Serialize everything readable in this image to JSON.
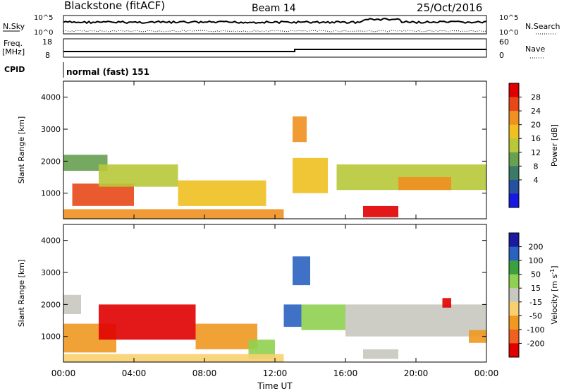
{
  "header": {
    "station": "Blackstone (fitACF)",
    "beam": "Beam 14",
    "date": "25/Oct/2016"
  },
  "panels": {
    "nsky_label": "N.Sky",
    "nsearch_label": "N.Search",
    "nsky_ticks": [
      "10^5",
      "10^0"
    ],
    "nsearch_ticks": [
      "10^5",
      "10^0"
    ],
    "freq_label": "Freq.",
    "freq_unit": "[MHz]",
    "freq_ticks": [
      "18",
      "8"
    ],
    "nave_label": "Nave",
    "nave_ticks": [
      "60",
      "0"
    ],
    "cpid_label": "CPID",
    "cpid_value": "normal (fast) 151"
  },
  "chart_data": [
    {
      "type": "heatmap",
      "name": "power-panel",
      "ylabel": "Slant Range [km]",
      "yticks": [
        "1000",
        "2000",
        "3000",
        "4000"
      ],
      "ylim": [
        200,
        4500
      ],
      "colorbar_label": "Power [dB]",
      "colorbar_ticks": [
        "4",
        "8",
        "12",
        "16",
        "20",
        "24",
        "28"
      ],
      "colors": [
        "#1818e0",
        "#2850a0",
        "#3a7a66",
        "#66a050",
        "#b8c838",
        "#f0c020",
        "#f09020",
        "#e84818",
        "#e00000"
      ],
      "xticks": [
        "00:00",
        "04:00",
        "08:00",
        "12:00",
        "16:00",
        "20:00",
        "00:00"
      ],
      "regions": [
        {
          "t0": 0.0,
          "t1": 2.5,
          "r0": 1700,
          "r1": 2200,
          "level": 3
        },
        {
          "t0": 0.5,
          "t1": 4.0,
          "r0": 600,
          "r1": 1300,
          "level": 7
        },
        {
          "t0": 2.0,
          "t1": 6.5,
          "r0": 1200,
          "r1": 1900,
          "level": 4
        },
        {
          "t0": 6.5,
          "t1": 11.5,
          "r0": 600,
          "r1": 1400,
          "level": 5
        },
        {
          "t0": 0.0,
          "t1": 12.5,
          "r0": 200,
          "r1": 500,
          "level": 6
        },
        {
          "t0": 13.0,
          "t1": 15.0,
          "r0": 1000,
          "r1": 2100,
          "level": 5
        },
        {
          "t0": 13.0,
          "t1": 13.8,
          "r0": 2600,
          "r1": 3400,
          "level": 6
        },
        {
          "t0": 15.5,
          "t1": 24.0,
          "r0": 1100,
          "r1": 1900,
          "level": 4
        },
        {
          "t0": 17.0,
          "t1": 19.0,
          "r0": 250,
          "r1": 600,
          "level": 8
        },
        {
          "t0": 19.0,
          "t1": 22.0,
          "r0": 1100,
          "r1": 1500,
          "level": 6
        }
      ]
    },
    {
      "type": "heatmap",
      "name": "velocity-panel",
      "ylabel": "Slant Range [km]",
      "yticks": [
        "1000",
        "2000",
        "3000",
        "4000"
      ],
      "ylim": [
        200,
        4500
      ],
      "colorbar_label": "Velocity [m s^-1]",
      "colorbar_ticks": [
        "200",
        "100",
        "50",
        "15",
        "-15",
        "-50",
        "-100",
        "-200"
      ],
      "colors": [
        "#1a1aa0",
        "#2a62c0",
        "#3aa040",
        "#90d050",
        "#c8c8c0",
        "#f8d070",
        "#f09820",
        "#f06020",
        "#e00000"
      ],
      "xticks": [
        "00:00",
        "04:00",
        "08:00",
        "12:00",
        "16:00",
        "20:00",
        "00:00"
      ],
      "xlabel": "Time UT",
      "regions": [
        {
          "t0": 0.0,
          "t1": 1.0,
          "r0": 1700,
          "r1": 2300,
          "level": 4
        },
        {
          "t0": 0.0,
          "t1": 3.0,
          "r0": 500,
          "r1": 1400,
          "level": 6
        },
        {
          "t0": 2.0,
          "t1": 7.5,
          "r0": 900,
          "r1": 2000,
          "level": 8
        },
        {
          "t0": 7.5,
          "t1": 11.0,
          "r0": 600,
          "r1": 1400,
          "level": 6
        },
        {
          "t0": 10.5,
          "t1": 12.0,
          "r0": 300,
          "r1": 900,
          "level": 3
        },
        {
          "t0": 0.0,
          "t1": 12.5,
          "r0": 200,
          "r1": 450,
          "level": 5
        },
        {
          "t0": 12.5,
          "t1": 13.5,
          "r0": 1300,
          "r1": 2000,
          "level": 1
        },
        {
          "t0": 13.0,
          "t1": 14.0,
          "r0": 2600,
          "r1": 3500,
          "level": 1
        },
        {
          "t0": 13.5,
          "t1": 16.0,
          "r0": 1200,
          "r1": 2000,
          "level": 3
        },
        {
          "t0": 16.0,
          "t1": 24.0,
          "r0": 1000,
          "r1": 2000,
          "level": 4
        },
        {
          "t0": 17.0,
          "t1": 19.0,
          "r0": 300,
          "r1": 600,
          "level": 4
        },
        {
          "t0": 21.5,
          "t1": 22.0,
          "r0": 1900,
          "r1": 2200,
          "level": 8
        },
        {
          "t0": 23.0,
          "t1": 24.0,
          "r0": 800,
          "r1": 1200,
          "level": 6
        }
      ]
    }
  ]
}
